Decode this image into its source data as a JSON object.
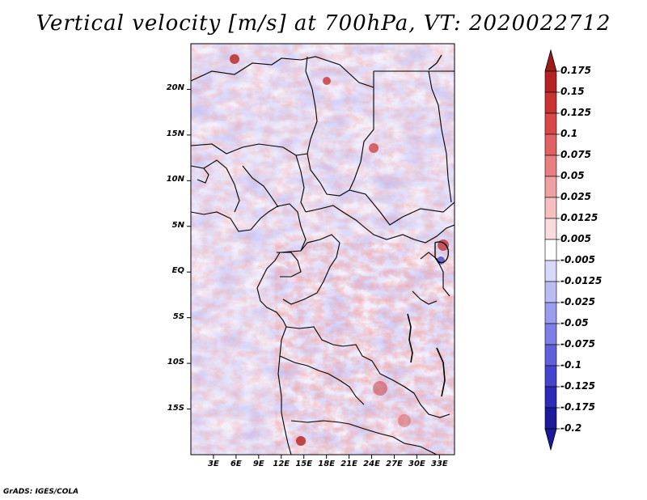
{
  "title": "Vertical velocity [m/s] at 700hPa, VT: 2020022712",
  "footer": "GrADS: IGES/COLA",
  "map": {
    "lon_range": [
      0,
      35
    ],
    "lat_range": [
      -20,
      25
    ],
    "lat_ticks": [
      {
        "value": 20,
        "label": "20N"
      },
      {
        "value": 15,
        "label": "15N"
      },
      {
        "value": 10,
        "label": "10N"
      },
      {
        "value": 5,
        "label": "5N"
      },
      {
        "value": 0,
        "label": "EQ"
      },
      {
        "value": -5,
        "label": "5S"
      },
      {
        "value": -10,
        "label": "10S"
      },
      {
        "value": -15,
        "label": "15S"
      }
    ],
    "lon_ticks": [
      {
        "value": 3,
        "label": "3E"
      },
      {
        "value": 6,
        "label": "6E"
      },
      {
        "value": 9,
        "label": "9E"
      },
      {
        "value": 12,
        "label": "12E"
      },
      {
        "value": 15,
        "label": "15E"
      },
      {
        "value": 18,
        "label": "18E"
      },
      {
        "value": 21,
        "label": "21E"
      },
      {
        "value": 24,
        "label": "24E"
      },
      {
        "value": 27,
        "label": "27E"
      },
      {
        "value": 30,
        "label": "30E"
      },
      {
        "value": 33,
        "label": "33E"
      }
    ]
  },
  "colorbar": {
    "levels": [
      {
        "label": "0.175",
        "color": "#a01a1a"
      },
      {
        "label": "0.15",
        "color": "#b52222"
      },
      {
        "label": "0.125",
        "color": "#c83232"
      },
      {
        "label": "0.1",
        "color": "#d84848"
      },
      {
        "label": "0.075",
        "color": "#e06262"
      },
      {
        "label": "0.05",
        "color": "#e88080"
      },
      {
        "label": "0.025",
        "color": "#f0a0a0"
      },
      {
        "label": "0.0125",
        "color": "#f6c0c0"
      },
      {
        "label": "0.005",
        "color": "#fadcdc"
      },
      {
        "label": "-0.005",
        "color": "#ffffff"
      },
      {
        "label": "-0.0125",
        "color": "#d8d8fa"
      },
      {
        "label": "-0.025",
        "color": "#bcbcf4"
      },
      {
        "label": "-0.05",
        "color": "#9c9cee"
      },
      {
        "label": "-0.075",
        "color": "#7e7ee6"
      },
      {
        "label": "-0.1",
        "color": "#6060dc"
      },
      {
        "label": "-0.125",
        "color": "#4444cc"
      },
      {
        "label": "-0.175",
        "color": "#2c2cb8"
      },
      {
        "label": "-0.2",
        "color": "#1a1a9a"
      }
    ],
    "top_color": "#a01a1a",
    "bottom_color": "#1a1a9a"
  }
}
